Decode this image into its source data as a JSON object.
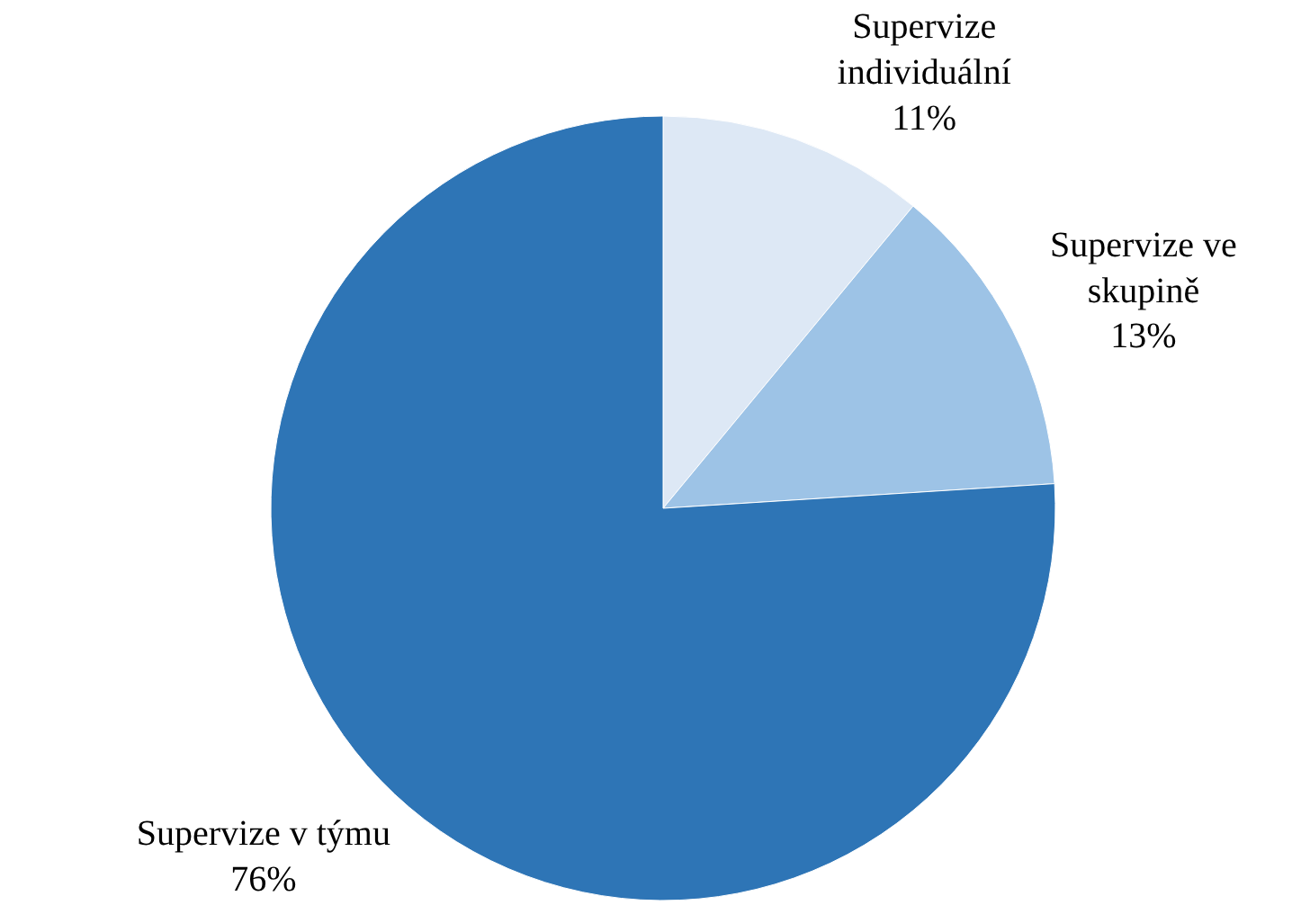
{
  "chart_data": {
    "type": "pie",
    "categories": [
      "Supervize individuální",
      "Supervize ve skupině",
      "Supervize v týmu"
    ],
    "values": [
      11,
      13,
      76
    ],
    "colors": [
      "#dde8f5",
      "#9dc3e6",
      "#2e75b6"
    ],
    "value_labels": [
      "11%",
      "13%",
      "76%"
    ]
  }
}
